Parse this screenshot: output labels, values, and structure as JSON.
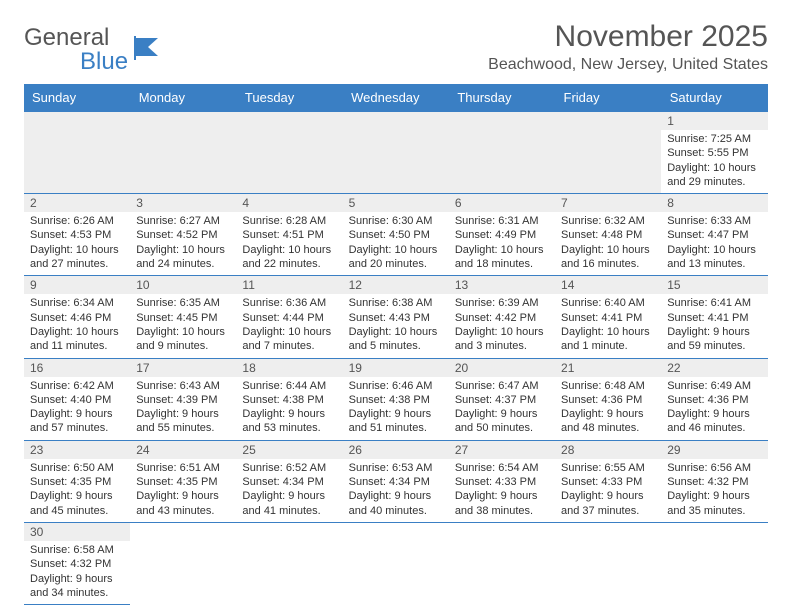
{
  "logo": {
    "word1": "General",
    "word2": "Blue"
  },
  "title": "November 2025",
  "subtitle": "Beachwood, New Jersey, United States",
  "colors": {
    "header_bg": "#3a7fc4",
    "daynum_bg": "#eeeeee",
    "text": "#333333",
    "border": "#3a7fc4"
  },
  "day_headers": [
    "Sunday",
    "Monday",
    "Tuesday",
    "Wednesday",
    "Thursday",
    "Friday",
    "Saturday"
  ],
  "weeks": [
    [
      null,
      null,
      null,
      null,
      null,
      null,
      {
        "n": "1",
        "sr": "Sunrise: 7:25 AM",
        "ss": "Sunset: 5:55 PM",
        "dl1": "Daylight: 10 hours",
        "dl2": "and 29 minutes."
      }
    ],
    [
      {
        "n": "2",
        "sr": "Sunrise: 6:26 AM",
        "ss": "Sunset: 4:53 PM",
        "dl1": "Daylight: 10 hours",
        "dl2": "and 27 minutes."
      },
      {
        "n": "3",
        "sr": "Sunrise: 6:27 AM",
        "ss": "Sunset: 4:52 PM",
        "dl1": "Daylight: 10 hours",
        "dl2": "and 24 minutes."
      },
      {
        "n": "4",
        "sr": "Sunrise: 6:28 AM",
        "ss": "Sunset: 4:51 PM",
        "dl1": "Daylight: 10 hours",
        "dl2": "and 22 minutes."
      },
      {
        "n": "5",
        "sr": "Sunrise: 6:30 AM",
        "ss": "Sunset: 4:50 PM",
        "dl1": "Daylight: 10 hours",
        "dl2": "and 20 minutes."
      },
      {
        "n": "6",
        "sr": "Sunrise: 6:31 AM",
        "ss": "Sunset: 4:49 PM",
        "dl1": "Daylight: 10 hours",
        "dl2": "and 18 minutes."
      },
      {
        "n": "7",
        "sr": "Sunrise: 6:32 AM",
        "ss": "Sunset: 4:48 PM",
        "dl1": "Daylight: 10 hours",
        "dl2": "and 16 minutes."
      },
      {
        "n": "8",
        "sr": "Sunrise: 6:33 AM",
        "ss": "Sunset: 4:47 PM",
        "dl1": "Daylight: 10 hours",
        "dl2": "and 13 minutes."
      }
    ],
    [
      {
        "n": "9",
        "sr": "Sunrise: 6:34 AM",
        "ss": "Sunset: 4:46 PM",
        "dl1": "Daylight: 10 hours",
        "dl2": "and 11 minutes."
      },
      {
        "n": "10",
        "sr": "Sunrise: 6:35 AM",
        "ss": "Sunset: 4:45 PM",
        "dl1": "Daylight: 10 hours",
        "dl2": "and 9 minutes."
      },
      {
        "n": "11",
        "sr": "Sunrise: 6:36 AM",
        "ss": "Sunset: 4:44 PM",
        "dl1": "Daylight: 10 hours",
        "dl2": "and 7 minutes."
      },
      {
        "n": "12",
        "sr": "Sunrise: 6:38 AM",
        "ss": "Sunset: 4:43 PM",
        "dl1": "Daylight: 10 hours",
        "dl2": "and 5 minutes."
      },
      {
        "n": "13",
        "sr": "Sunrise: 6:39 AM",
        "ss": "Sunset: 4:42 PM",
        "dl1": "Daylight: 10 hours",
        "dl2": "and 3 minutes."
      },
      {
        "n": "14",
        "sr": "Sunrise: 6:40 AM",
        "ss": "Sunset: 4:41 PM",
        "dl1": "Daylight: 10 hours",
        "dl2": "and 1 minute."
      },
      {
        "n": "15",
        "sr": "Sunrise: 6:41 AM",
        "ss": "Sunset: 4:41 PM",
        "dl1": "Daylight: 9 hours",
        "dl2": "and 59 minutes."
      }
    ],
    [
      {
        "n": "16",
        "sr": "Sunrise: 6:42 AM",
        "ss": "Sunset: 4:40 PM",
        "dl1": "Daylight: 9 hours",
        "dl2": "and 57 minutes."
      },
      {
        "n": "17",
        "sr": "Sunrise: 6:43 AM",
        "ss": "Sunset: 4:39 PM",
        "dl1": "Daylight: 9 hours",
        "dl2": "and 55 minutes."
      },
      {
        "n": "18",
        "sr": "Sunrise: 6:44 AM",
        "ss": "Sunset: 4:38 PM",
        "dl1": "Daylight: 9 hours",
        "dl2": "and 53 minutes."
      },
      {
        "n": "19",
        "sr": "Sunrise: 6:46 AM",
        "ss": "Sunset: 4:38 PM",
        "dl1": "Daylight: 9 hours",
        "dl2": "and 51 minutes."
      },
      {
        "n": "20",
        "sr": "Sunrise: 6:47 AM",
        "ss": "Sunset: 4:37 PM",
        "dl1": "Daylight: 9 hours",
        "dl2": "and 50 minutes."
      },
      {
        "n": "21",
        "sr": "Sunrise: 6:48 AM",
        "ss": "Sunset: 4:36 PM",
        "dl1": "Daylight: 9 hours",
        "dl2": "and 48 minutes."
      },
      {
        "n": "22",
        "sr": "Sunrise: 6:49 AM",
        "ss": "Sunset: 4:36 PM",
        "dl1": "Daylight: 9 hours",
        "dl2": "and 46 minutes."
      }
    ],
    [
      {
        "n": "23",
        "sr": "Sunrise: 6:50 AM",
        "ss": "Sunset: 4:35 PM",
        "dl1": "Daylight: 9 hours",
        "dl2": "and 45 minutes."
      },
      {
        "n": "24",
        "sr": "Sunrise: 6:51 AM",
        "ss": "Sunset: 4:35 PM",
        "dl1": "Daylight: 9 hours",
        "dl2": "and 43 minutes."
      },
      {
        "n": "25",
        "sr": "Sunrise: 6:52 AM",
        "ss": "Sunset: 4:34 PM",
        "dl1": "Daylight: 9 hours",
        "dl2": "and 41 minutes."
      },
      {
        "n": "26",
        "sr": "Sunrise: 6:53 AM",
        "ss": "Sunset: 4:34 PM",
        "dl1": "Daylight: 9 hours",
        "dl2": "and 40 minutes."
      },
      {
        "n": "27",
        "sr": "Sunrise: 6:54 AM",
        "ss": "Sunset: 4:33 PM",
        "dl1": "Daylight: 9 hours",
        "dl2": "and 38 minutes."
      },
      {
        "n": "28",
        "sr": "Sunrise: 6:55 AM",
        "ss": "Sunset: 4:33 PM",
        "dl1": "Daylight: 9 hours",
        "dl2": "and 37 minutes."
      },
      {
        "n": "29",
        "sr": "Sunrise: 6:56 AM",
        "ss": "Sunset: 4:32 PM",
        "dl1": "Daylight: 9 hours",
        "dl2": "and 35 minutes."
      }
    ],
    [
      {
        "n": "30",
        "sr": "Sunrise: 6:58 AM",
        "ss": "Sunset: 4:32 PM",
        "dl1": "Daylight: 9 hours",
        "dl2": "and 34 minutes."
      },
      null,
      null,
      null,
      null,
      null,
      null
    ]
  ]
}
